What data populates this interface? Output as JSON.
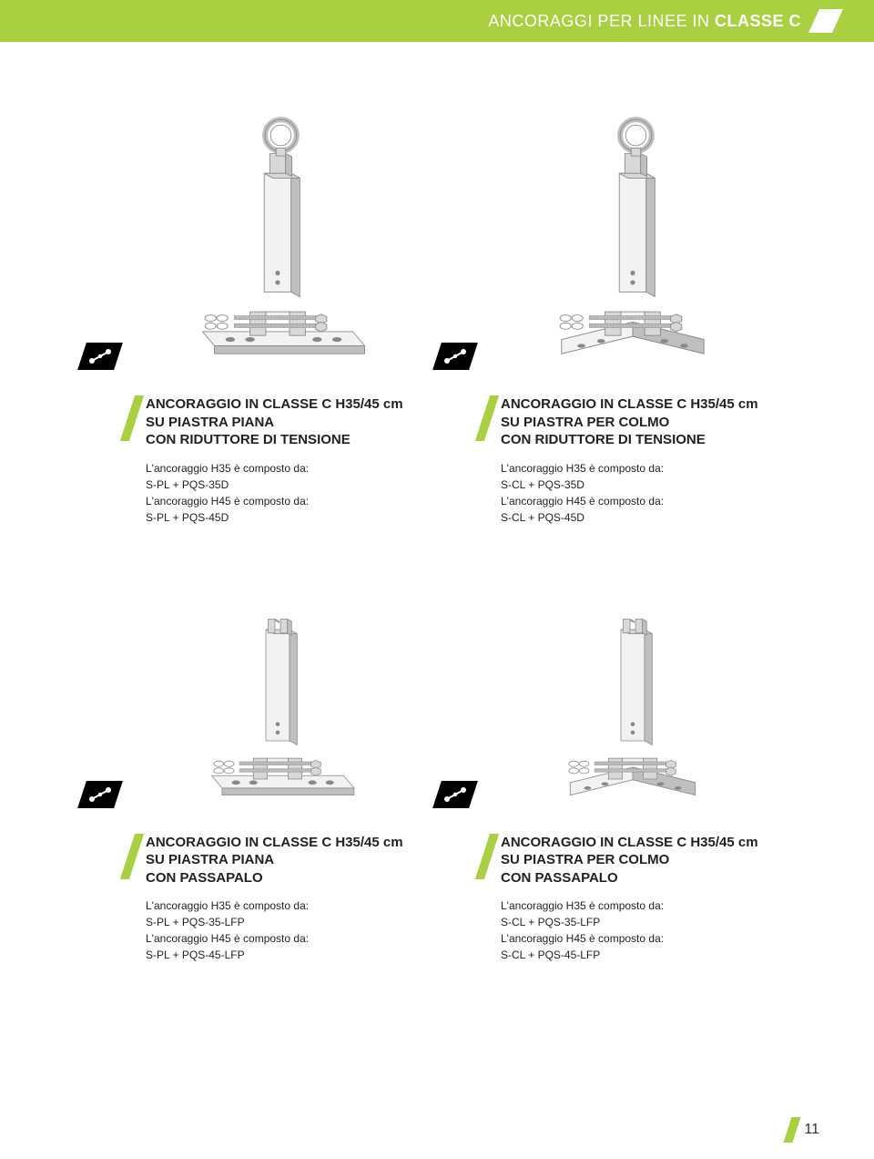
{
  "header": {
    "prefix": "ANCORAGGI PER LINEE IN ",
    "bold": "CLASSE C"
  },
  "products": [
    {
      "title": "ANCORAGGIO IN CLASSE C H35/45 cm\nSU PIASTRA PIANA\nCON RIDUTTORE DI TENSIONE",
      "desc": "L'ancoraggio H35 è composto da:\nS-PL + PQS-35D\nL'ancoraggio H45 è composto da:\nS-PL + PQS-45D",
      "has_top_loop": true,
      "base_tilt": "flat"
    },
    {
      "title": "ANCORAGGIO IN CLASSE C H35/45 cm\nSU PIASTRA PER COLMO\nCON RIDUTTORE DI TENSIONE",
      "desc": "L'ancoraggio H35 è composto da:\nS-CL + PQS-35D\nL'ancoraggio H45 è composto da:\nS-CL + PQS-45D",
      "has_top_loop": true,
      "base_tilt": "ridge"
    },
    {
      "title": "ANCORAGGIO IN CLASSE C H35/45 cm\nSU PIASTRA PIANA\nCON PASSAPALO",
      "desc": "L'ancoraggio H35 è composto da:\nS-PL + PQS-35-LFP\nL'ancoraggio H45 è composto da:\nS-PL + PQS-45-LFP",
      "has_top_loop": false,
      "base_tilt": "flat"
    },
    {
      "title": "ANCORAGGIO IN CLASSE C H35/45 cm\nSU PIASTRA PER COLMO\nCON PASSAPALO",
      "desc": "L'ancoraggio H35 è composto da:\nS-CL + PQS-35-LFP\nL'ancoraggio H45 è composto da:\nS-CL + PQS-45-LFP",
      "has_top_loop": false,
      "base_tilt": "ridge"
    }
  ],
  "page_number": "11",
  "colors": {
    "accent": "#a8d040",
    "illus_light": "#f2f2f2",
    "illus_mid": "#d8d8d8",
    "illus_dark": "#bfbfbf",
    "illus_stroke": "#888888"
  }
}
